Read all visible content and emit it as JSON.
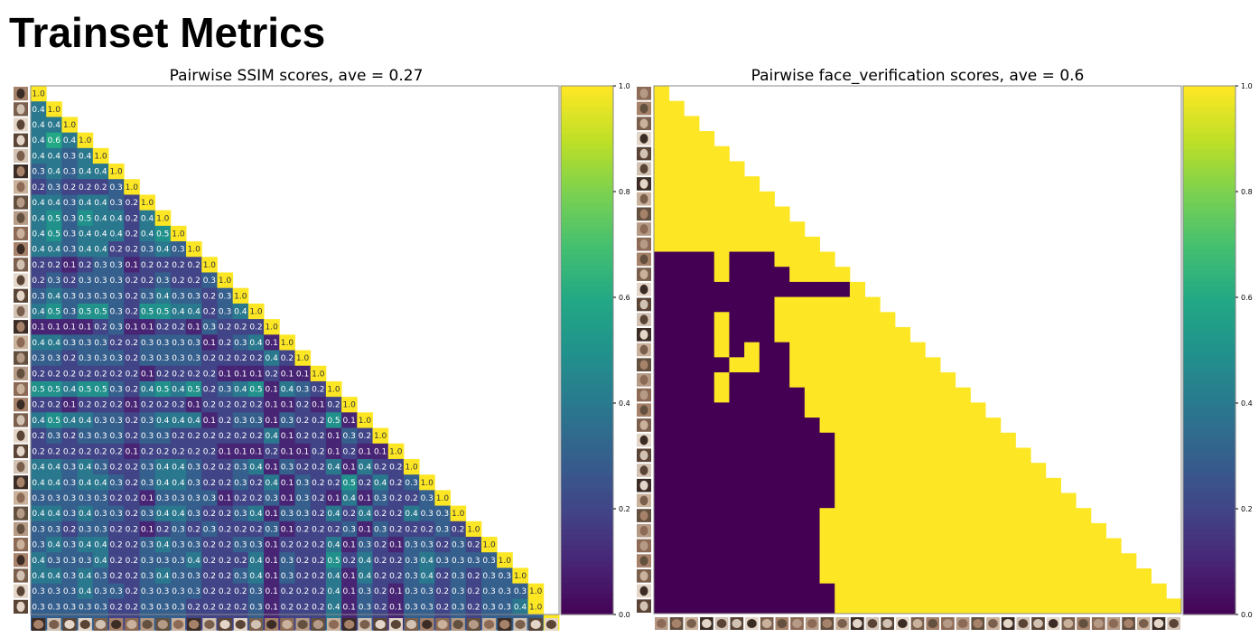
{
  "page": {
    "title": "Trainset Metrics"
  },
  "colorbar_ticks": [
    "0.0",
    "0.2",
    "0.4",
    "0.6",
    "0.8",
    "1.0"
  ],
  "colors": {
    "viridis_low": "#440154",
    "viridis_high": "#fde725"
  },
  "chart_data": [
    {
      "type": "heatmap",
      "title": "Pairwise SSIM scores, ave = 0.27",
      "metric": "SSIM",
      "average": 0.27,
      "n": 34,
      "lower_triangle": true,
      "colormap": "viridis",
      "vmin": 0.0,
      "vmax": 1.0,
      "xlabel": "",
      "ylabel": "",
      "axis_tick_labels": "face thumbnails",
      "cell_labels": true,
      "rows": [
        [
          1.0
        ],
        [
          0.4,
          1.0
        ],
        [
          0.4,
          0.4,
          1.0
        ],
        [
          0.4,
          0.6,
          0.4,
          1.0
        ],
        [
          0.4,
          0.4,
          0.3,
          0.4,
          1.0
        ],
        [
          0.3,
          0.4,
          0.3,
          0.4,
          0.4,
          1.0
        ],
        [
          0.2,
          0.3,
          0.2,
          0.2,
          0.2,
          0.3,
          1.0
        ],
        [
          0.4,
          0.4,
          0.3,
          0.4,
          0.4,
          0.3,
          0.2,
          1.0
        ],
        [
          0.4,
          0.5,
          0.3,
          0.5,
          0.4,
          0.4,
          0.2,
          0.4,
          1.0
        ],
        [
          0.4,
          0.5,
          0.3,
          0.4,
          0.4,
          0.4,
          0.2,
          0.4,
          0.5,
          1.0
        ],
        [
          0.4,
          0.4,
          0.3,
          0.4,
          0.4,
          0.2,
          0.2,
          0.3,
          0.4,
          0.3,
          1.0
        ],
        [
          0.2,
          0.2,
          0.1,
          0.2,
          0.3,
          0.3,
          0.1,
          0.2,
          0.2,
          0.2,
          0.2,
          1.0
        ],
        [
          0.2,
          0.3,
          0.2,
          0.3,
          0.3,
          0.3,
          0.2,
          0.2,
          0.3,
          0.2,
          0.2,
          0.3,
          1.0
        ],
        [
          0.3,
          0.4,
          0.3,
          0.3,
          0.3,
          0.3,
          0.2,
          0.3,
          0.4,
          0.3,
          0.3,
          0.2,
          0.3,
          1.0
        ],
        [
          0.4,
          0.5,
          0.3,
          0.5,
          0.5,
          0.3,
          0.2,
          0.5,
          0.5,
          0.4,
          0.4,
          0.2,
          0.3,
          0.4,
          1.0
        ],
        [
          0.1,
          0.1,
          0.1,
          0.1,
          0.2,
          0.3,
          0.1,
          0.1,
          0.2,
          0.2,
          0.1,
          0.3,
          0.2,
          0.2,
          0.2,
          1.0
        ],
        [
          0.4,
          0.4,
          0.3,
          0.3,
          0.3,
          0.2,
          0.2,
          0.3,
          0.3,
          0.3,
          0.3,
          0.1,
          0.2,
          0.3,
          0.4,
          0.1,
          1.0
        ],
        [
          0.3,
          0.3,
          0.2,
          0.3,
          0.3,
          0.3,
          0.2,
          0.3,
          0.3,
          0.3,
          0.3,
          0.2,
          0.2,
          0.2,
          0.2,
          0.4,
          0.2,
          1.0
        ],
        [
          0.2,
          0.2,
          0.2,
          0.2,
          0.2,
          0.2,
          0.2,
          0.1,
          0.2,
          0.2,
          0.2,
          0.2,
          0.1,
          0.1,
          0.1,
          0.2,
          0.1,
          0.1,
          1.0
        ],
        [
          0.5,
          0.5,
          0.4,
          0.5,
          0.5,
          0.3,
          0.2,
          0.4,
          0.5,
          0.4,
          0.5,
          0.2,
          0.3,
          0.4,
          0.5,
          0.1,
          0.4,
          0.3,
          0.2,
          1.0
        ],
        [
          0.2,
          0.2,
          0.1,
          0.2,
          0.2,
          0.2,
          0.1,
          0.2,
          0.2,
          0.2,
          0.1,
          0.2,
          0.2,
          0.2,
          0.2,
          0.1,
          0.1,
          0.2,
          0.1,
          0.2,
          1.0
        ],
        [
          0.4,
          0.5,
          0.4,
          0.4,
          0.3,
          0.3,
          0.2,
          0.3,
          0.4,
          0.4,
          0.4,
          0.1,
          0.2,
          0.3,
          0.3,
          0.1,
          0.3,
          0.2,
          0.2,
          0.5,
          0.1,
          1.0
        ],
        [
          0.2,
          0.3,
          0.2,
          0.3,
          0.3,
          0.3,
          0.2,
          0.3,
          0.3,
          0.2,
          0.2,
          0.2,
          0.2,
          0.2,
          0.2,
          0.4,
          0.1,
          0.2,
          0.2,
          0.1,
          0.3,
          0.2,
          1.0
        ],
        [
          0.2,
          0.2,
          0.2,
          0.2,
          0.2,
          0.2,
          0.1,
          0.2,
          0.2,
          0.2,
          0.2,
          0.2,
          0.1,
          0.1,
          0.1,
          0.2,
          0.1,
          0.1,
          0.2,
          0.1,
          0.2,
          0.1,
          0.1,
          1.0
        ],
        [
          0.4,
          0.4,
          0.3,
          0.4,
          0.3,
          0.2,
          0.2,
          0.3,
          0.4,
          0.4,
          0.3,
          0.2,
          0.2,
          0.3,
          0.4,
          0.1,
          0.3,
          0.2,
          0.2,
          0.4,
          0.1,
          0.4,
          0.2,
          0.2,
          1.0
        ],
        [
          0.4,
          0.4,
          0.3,
          0.4,
          0.4,
          0.3,
          0.2,
          0.3,
          0.4,
          0.4,
          0.3,
          0.2,
          0.2,
          0.3,
          0.2,
          0.4,
          0.1,
          0.3,
          0.2,
          0.2,
          0.5,
          0.2,
          0.4,
          0.2,
          0.3,
          1.0
        ],
        [
          0.3,
          0.3,
          0.3,
          0.3,
          0.3,
          0.2,
          0.2,
          0.1,
          0.3,
          0.3,
          0.3,
          0.3,
          0.1,
          0.2,
          0.2,
          0.3,
          0.1,
          0.3,
          0.2,
          0.1,
          0.4,
          0.1,
          0.3,
          0.2,
          0.2,
          0.3,
          1.0
        ],
        [
          0.4,
          0.4,
          0.3,
          0.4,
          0.3,
          0.3,
          0.2,
          0.3,
          0.4,
          0.4,
          0.3,
          0.2,
          0.2,
          0.3,
          0.4,
          0.1,
          0.3,
          0.3,
          0.2,
          0.4,
          0.2,
          0.4,
          0.2,
          0.2,
          0.4,
          0.3,
          0.3,
          1.0
        ],
        [
          0.3,
          0.3,
          0.2,
          0.3,
          0.3,
          0.2,
          0.2,
          0.1,
          0.2,
          0.3,
          0.2,
          0.3,
          0.2,
          0.2,
          0.2,
          0.3,
          0.1,
          0.2,
          0.2,
          0.2,
          0.3,
          0.1,
          0.3,
          0.2,
          0.2,
          0.2,
          0.3,
          0.2,
          1.0
        ],
        [
          0.3,
          0.4,
          0.3,
          0.4,
          0.4,
          0.2,
          0.2,
          0.3,
          0.4,
          0.3,
          0.3,
          0.2,
          0.2,
          0.3,
          0.3,
          0.1,
          0.2,
          0.2,
          0.2,
          0.4,
          0.1,
          0.3,
          0.2,
          0.1,
          0.3,
          0.3,
          0.2,
          0.3,
          0.2,
          1.0
        ],
        [
          0.4,
          0.3,
          0.3,
          0.3,
          0.4,
          0.2,
          0.2,
          0.3,
          0.3,
          0.3,
          0.4,
          0.2,
          0.2,
          0.2,
          0.4,
          0.1,
          0.3,
          0.2,
          0.2,
          0.5,
          0.2,
          0.4,
          0.2,
          0.2,
          0.3,
          0.4,
          0.3,
          0.3,
          0.3,
          0.3,
          1.0
        ],
        [
          0.4,
          0.4,
          0.3,
          0.4,
          0.3,
          0.2,
          0.2,
          0.3,
          0.4,
          0.3,
          0.3,
          0.2,
          0.2,
          0.3,
          0.4,
          0.1,
          0.3,
          0.2,
          0.2,
          0.4,
          0.1,
          0.4,
          0.2,
          0.2,
          0.3,
          0.4,
          0.2,
          0.3,
          0.2,
          0.3,
          0.3,
          1.0
        ],
        [
          0.3,
          0.3,
          0.3,
          0.4,
          0.3,
          0.3,
          0.2,
          0.3,
          0.3,
          0.3,
          0.3,
          0.2,
          0.2,
          0.2,
          0.3,
          0.1,
          0.2,
          0.2,
          0.2,
          0.4,
          0.1,
          0.3,
          0.2,
          0.1,
          0.3,
          0.3,
          0.2,
          0.3,
          0.2,
          0.3,
          0.3,
          0.3,
          1.0
        ],
        [
          0.3,
          0.3,
          0.3,
          0.3,
          0.3,
          0.2,
          0.2,
          0.3,
          0.3,
          0.3,
          0.2,
          0.2,
          0.2,
          0.2,
          0.3,
          0.1,
          0.2,
          0.2,
          0.2,
          0.4,
          0.1,
          0.3,
          0.2,
          0.1,
          0.3,
          0.3,
          0.2,
          0.3,
          0.2,
          0.3,
          0.3,
          0.4,
          1.0
        ],
        [
          0.3,
          0.3,
          0.3,
          0.3,
          0.3,
          0.2,
          0.2,
          0.3,
          0.3,
          0.3,
          0.2,
          0.2,
          0.2,
          0.2,
          0.3,
          0.1,
          0.2,
          0.2,
          0.2,
          0.4,
          0.1,
          0.3,
          0.2,
          0.1,
          0.3,
          0.3,
          0.2,
          0.3,
          0.2,
          0.3,
          0.3,
          0.3,
          0.3,
          1.0
        ]
      ]
    },
    {
      "type": "heatmap",
      "title": "Pairwise face_verification scores, ave = 0.6",
      "metric": "face_verification",
      "average": 0.6,
      "n": 35,
      "lower_triangle": true,
      "colormap": "viridis",
      "vmin": 0.0,
      "vmax": 1.0,
      "xlabel": "",
      "ylabel": "",
      "axis_tick_labels": "face thumbnails",
      "cell_labels": false,
      "rows": [
        "1",
        "11",
        "111",
        "1111",
        "11111",
        "111111",
        "1111111",
        "11111111",
        "111111111",
        "1111111111",
        "11111111111",
        "000010001111",
        "0000100001111",
        "00000000000001",
        "000000001111111",
        "0000100011111111",
        "00001000111111111",
        "000010100111111111",
        "0000011001111111111",
        "00001000011111111111",
        "000010000011111111111",
        "0000000000111111111111",
        "00000000000111111111111",
        "000000000000111111111111",
        "0000000000001111111111111",
        "00000000000011111111111111",
        "000000000000111111111111111",
        "0000000000001111111111111111",
        "00000000000111111111111111111",
        "000000000001111111111111111111",
        "0000000000011111111111111111111",
        "00000000000111111111111111111111",
        "000000000001111111111111111111111",
        "0000000000001111111111111111111111",
        "00000000000011111111111111111111111"
      ]
    }
  ]
}
